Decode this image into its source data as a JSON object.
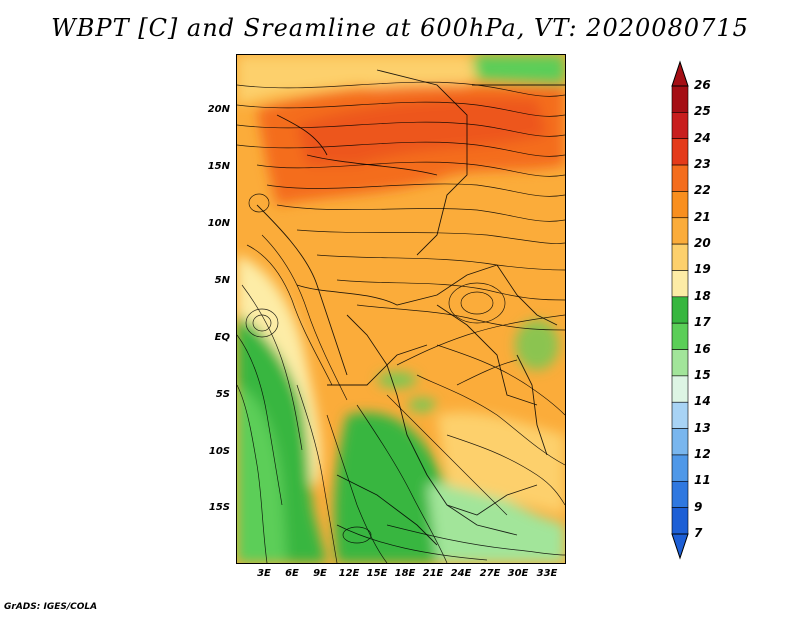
{
  "title": "WBPT [C] and Sreamline at 600hPa, VT: 2020080715",
  "footer": "GrADS: IGES/COLA",
  "y_axis_labels": [
    "20N",
    "15N",
    "10N",
    "5N",
    "EQ",
    "5S",
    "10S",
    "15S"
  ],
  "x_axis_labels": [
    "3E",
    "6E",
    "9E",
    "12E",
    "15E",
    "18E",
    "21E",
    "24E",
    "27E",
    "30E",
    "33E"
  ],
  "colorbar": {
    "labels": [
      "26",
      "25",
      "24",
      "23",
      "22",
      "21",
      "20",
      "19",
      "18",
      "17",
      "16",
      "15",
      "14",
      "13",
      "12",
      "11",
      "9",
      "7"
    ],
    "colors": [
      "#a50f15",
      "#c81e1e",
      "#e43a1a",
      "#f46d1e",
      "#f98f1f",
      "#fbac3a",
      "#fdd06c",
      "#fdeca6",
      "#37b63f",
      "#5bce58",
      "#a2e59a",
      "#ddf5e4",
      "#a8d3f5",
      "#79b6ee",
      "#4f98e8",
      "#2f78e0",
      "#1d5fd6"
    ]
  },
  "fields": {
    "variable": "WBPT",
    "unit": "C",
    "level": "600hPa",
    "valid_time": "2020080715"
  }
}
